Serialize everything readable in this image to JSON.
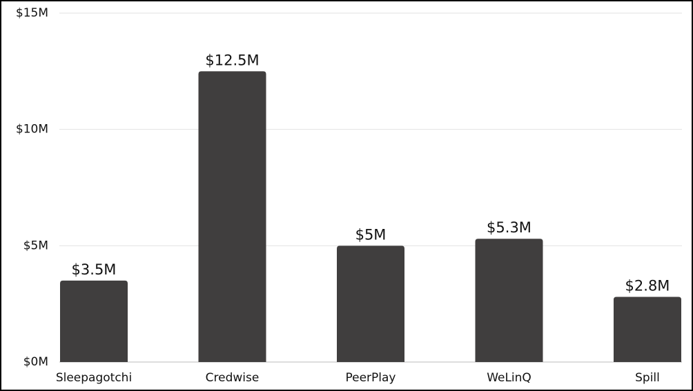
{
  "chart_data": {
    "type": "bar",
    "categories": [
      "Sleepagotchi",
      "Credwise",
      "PeerPlay",
      "WeLinQ",
      "Spill"
    ],
    "values": [
      3.5,
      12.5,
      5,
      5.3,
      2.8
    ],
    "value_labels": [
      "$3.5M",
      "$12.5M",
      "$5M",
      "$5.3M",
      "$2.8M"
    ],
    "color": "#403e3e",
    "ylim": [
      0,
      15
    ],
    "yticks": [
      {
        "value": 0,
        "label": "$0M"
      },
      {
        "value": 5,
        "label": "$5M"
      },
      {
        "value": 10,
        "label": "$10M"
      },
      {
        "value": 15,
        "label": "$15M"
      }
    ],
    "grid": true
  }
}
